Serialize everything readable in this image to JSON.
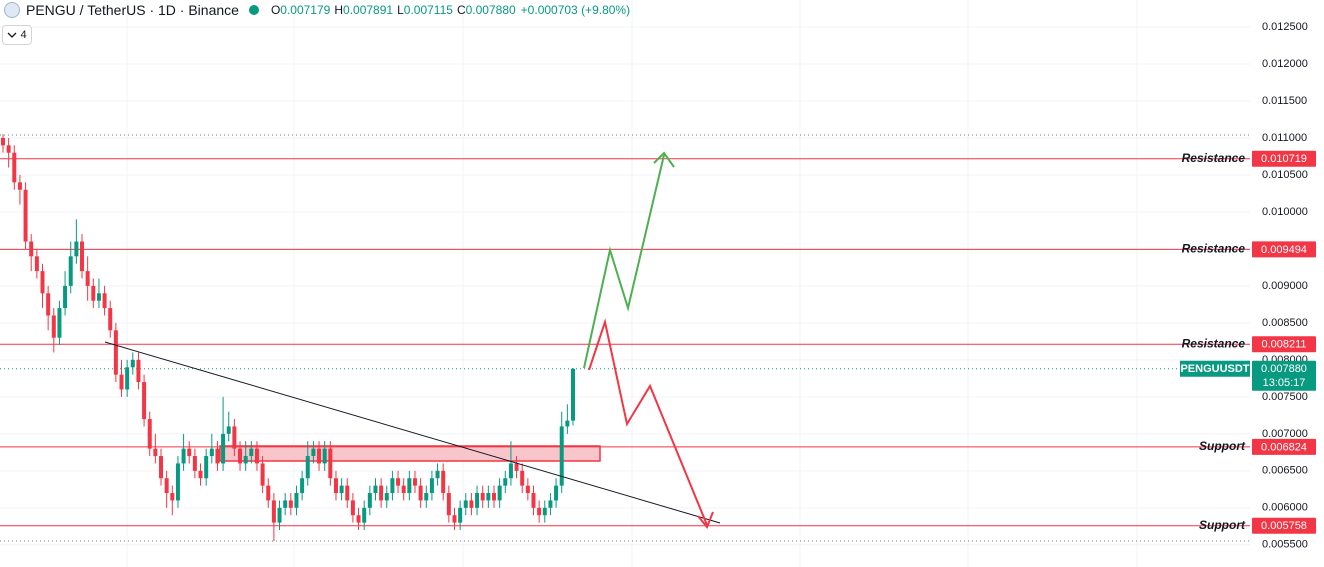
{
  "header": {
    "symbol": "PENGU / TetherUS · 1D · Binance",
    "ohlc": [
      {
        "key": "O",
        "value": "0.007179"
      },
      {
        "key": "H",
        "value": "0.007891"
      },
      {
        "key": "L",
        "value": "0.007115"
      },
      {
        "key": "C",
        "value": "0.007880"
      }
    ],
    "change": "+0.000703 (+9.80%)"
  },
  "indicator_count": "4",
  "chart_data": {
    "type": "candlestick",
    "up_color": "#089981",
    "down_color": "#f23645",
    "grid": true,
    "ylim": [
      0.0052,
      0.012865
    ],
    "yticks": [
      {
        "value": 0.0125,
        "label": "0.012500"
      },
      {
        "value": 0.012,
        "label": "0.012000"
      },
      {
        "value": 0.0115,
        "label": "0.011500"
      },
      {
        "value": 0.011,
        "label": "0.011000"
      },
      {
        "value": 0.0105,
        "label": "0.010500"
      },
      {
        "value": 0.01,
        "label": "0.010000"
      },
      {
        "value": 0.0095,
        "label": "0.009500"
      },
      {
        "value": 0.009,
        "label": "0.009000"
      },
      {
        "value": 0.0085,
        "label": "0.008500"
      },
      {
        "value": 0.008,
        "label": "0.008000"
      },
      {
        "value": 0.0075,
        "label": "0.007500"
      },
      {
        "value": 0.007,
        "label": "0.007000"
      },
      {
        "value": 0.0065,
        "label": "0.006500"
      },
      {
        "value": 0.006,
        "label": "0.006000"
      },
      {
        "value": 0.0055,
        "label": "0.005500"
      }
    ],
    "levels": [
      {
        "label": "Resistance",
        "value": 0.010719
      },
      {
        "label": "Resistance",
        "value": 0.009494
      },
      {
        "label": "Resistance",
        "value": 0.008211
      },
      {
        "label": "Support",
        "value": 0.006824
      },
      {
        "label": "Support",
        "value": 0.005758
      }
    ],
    "level_color": "#f23645",
    "last_price": {
      "symbol": "PENGUUSDT",
      "value": 0.00788,
      "value_label": "0.007880",
      "countdown": "13:05:17"
    },
    "candles": [
      [
        0.011,
        0.01105,
        0.0108,
        0.0109
      ],
      [
        0.0109,
        0.011,
        0.0106,
        0.0108
      ],
      [
        0.0108,
        0.0109,
        0.0103,
        0.0104
      ],
      [
        0.0104,
        0.0105,
        0.0101,
        0.0103
      ],
      [
        0.0103,
        0.0104,
        0.0095,
        0.0096
      ],
      [
        0.0096,
        0.0097,
        0.0092,
        0.0094
      ],
      [
        0.0094,
        0.0095,
        0.0091,
        0.0092
      ],
      [
        0.0092,
        0.0093,
        0.0087,
        0.0089
      ],
      [
        0.0089,
        0.009,
        0.0084,
        0.0086
      ],
      [
        0.0086,
        0.0087,
        0.0081,
        0.0083
      ],
      [
        0.0083,
        0.0088,
        0.0082,
        0.0087
      ],
      [
        0.0087,
        0.0092,
        0.0086,
        0.009
      ],
      [
        0.009,
        0.0096,
        0.0089,
        0.0094
      ],
      [
        0.0094,
        0.0099,
        0.0093,
        0.0096
      ],
      [
        0.0096,
        0.0097,
        0.0091,
        0.0092
      ],
      [
        0.0092,
        0.0094,
        0.0088,
        0.009
      ],
      [
        0.009,
        0.0091,
        0.0087,
        0.0088
      ],
      [
        0.0088,
        0.0091,
        0.0087,
        0.0089
      ],
      [
        0.0089,
        0.009,
        0.0086,
        0.0087
      ],
      [
        0.0087,
        0.0088,
        0.0083,
        0.0084
      ],
      [
        0.0084,
        0.0085,
        0.0077,
        0.0078
      ],
      [
        0.0078,
        0.008,
        0.0075,
        0.0076
      ],
      [
        0.0076,
        0.008,
        0.0075,
        0.0079
      ],
      [
        0.0079,
        0.0081,
        0.0078,
        0.008
      ],
      [
        0.008,
        0.0081,
        0.0076,
        0.0077
      ],
      [
        0.0077,
        0.0078,
        0.0071,
        0.0072
      ],
      [
        0.0072,
        0.0073,
        0.0067,
        0.0068
      ],
      [
        0.0068,
        0.007,
        0.0066,
        0.0067
      ],
      [
        0.0067,
        0.0068,
        0.0063,
        0.0064
      ],
      [
        0.0064,
        0.0065,
        0.006,
        0.0062
      ],
      [
        0.0062,
        0.0063,
        0.0059,
        0.0061
      ],
      [
        0.0061,
        0.0067,
        0.006,
        0.0066
      ],
      [
        0.0066,
        0.007,
        0.0065,
        0.0068
      ],
      [
        0.0068,
        0.0069,
        0.0066,
        0.0067
      ],
      [
        0.0067,
        0.0068,
        0.0064,
        0.0065
      ],
      [
        0.0065,
        0.0066,
        0.0063,
        0.0064
      ],
      [
        0.0064,
        0.0068,
        0.0063,
        0.0067
      ],
      [
        0.0067,
        0.007,
        0.0066,
        0.0068
      ],
      [
        0.0068,
        0.0069,
        0.0065,
        0.0066
      ],
      [
        0.0066,
        0.0075,
        0.0065,
        0.007
      ],
      [
        0.007,
        0.0073,
        0.0069,
        0.0071
      ],
      [
        0.0071,
        0.0072,
        0.0067,
        0.0068
      ],
      [
        0.0068,
        0.0069,
        0.0065,
        0.0066
      ],
      [
        0.0066,
        0.0069,
        0.0065,
        0.0067
      ],
      [
        0.0067,
        0.0069,
        0.0066,
        0.0068
      ],
      [
        0.0068,
        0.0069,
        0.0065,
        0.0066
      ],
      [
        0.0066,
        0.0067,
        0.0062,
        0.0063
      ],
      [
        0.0063,
        0.0064,
        0.006,
        0.0061
      ],
      [
        0.0061,
        0.0062,
        0.00555,
        0.0058
      ],
      [
        0.0058,
        0.0061,
        0.0057,
        0.006
      ],
      [
        0.006,
        0.0062,
        0.0059,
        0.0061
      ],
      [
        0.0061,
        0.0062,
        0.0059,
        0.006
      ],
      [
        0.006,
        0.0063,
        0.0059,
        0.0062
      ],
      [
        0.0062,
        0.0065,
        0.0061,
        0.0064
      ],
      [
        0.0064,
        0.0069,
        0.0063,
        0.0067
      ],
      [
        0.0067,
        0.0069,
        0.0066,
        0.0068
      ],
      [
        0.0068,
        0.0069,
        0.0065,
        0.0066
      ],
      [
        0.0066,
        0.0069,
        0.0065,
        0.0068
      ],
      [
        0.0068,
        0.0069,
        0.0063,
        0.0064
      ],
      [
        0.0064,
        0.0065,
        0.0061,
        0.0062
      ],
      [
        0.0062,
        0.0064,
        0.0061,
        0.0063
      ],
      [
        0.0063,
        0.0064,
        0.006,
        0.0061
      ],
      [
        0.0061,
        0.0062,
        0.0058,
        0.0059
      ],
      [
        0.0059,
        0.006,
        0.0057,
        0.0058
      ],
      [
        0.0058,
        0.0061,
        0.0057,
        0.006
      ],
      [
        0.006,
        0.0063,
        0.0059,
        0.0062
      ],
      [
        0.0062,
        0.0064,
        0.0061,
        0.0063
      ],
      [
        0.0063,
        0.0064,
        0.006,
        0.0061
      ],
      [
        0.0061,
        0.0063,
        0.006,
        0.0062
      ],
      [
        0.0062,
        0.0065,
        0.0061,
        0.0064
      ],
      [
        0.0064,
        0.0065,
        0.0062,
        0.0063
      ],
      [
        0.0063,
        0.0064,
        0.0061,
        0.0062
      ],
      [
        0.0062,
        0.0065,
        0.0061,
        0.0064
      ],
      [
        0.0064,
        0.0065,
        0.0062,
        0.0063
      ],
      [
        0.0063,
        0.0064,
        0.006,
        0.0061
      ],
      [
        0.0061,
        0.0063,
        0.006,
        0.0062
      ],
      [
        0.0062,
        0.0065,
        0.0061,
        0.0064
      ],
      [
        0.0064,
        0.0066,
        0.0063,
        0.0065
      ],
      [
        0.0065,
        0.0066,
        0.0061,
        0.0062
      ],
      [
        0.0062,
        0.0063,
        0.0058,
        0.0059
      ],
      [
        0.0059,
        0.006,
        0.0057,
        0.0058
      ],
      [
        0.0058,
        0.0061,
        0.0057,
        0.006
      ],
      [
        0.006,
        0.0062,
        0.0059,
        0.0061
      ],
      [
        0.0061,
        0.0062,
        0.0059,
        0.006
      ],
      [
        0.006,
        0.0063,
        0.0059,
        0.0062
      ],
      [
        0.0062,
        0.0063,
        0.006,
        0.0061
      ],
      [
        0.0061,
        0.0063,
        0.006,
        0.0062
      ],
      [
        0.0062,
        0.0063,
        0.006,
        0.0061
      ],
      [
        0.0061,
        0.0064,
        0.006,
        0.0063
      ],
      [
        0.0063,
        0.0065,
        0.0062,
        0.0064
      ],
      [
        0.0064,
        0.0069,
        0.0063,
        0.0066
      ],
      [
        0.0066,
        0.0067,
        0.0064,
        0.0065
      ],
      [
        0.0065,
        0.0066,
        0.0062,
        0.0063
      ],
      [
        0.0063,
        0.0064,
        0.0061,
        0.0062
      ],
      [
        0.0062,
        0.0063,
        0.0059,
        0.006
      ],
      [
        0.006,
        0.0061,
        0.0058,
        0.0059
      ],
      [
        0.0059,
        0.0061,
        0.0058,
        0.006
      ],
      [
        0.006,
        0.0062,
        0.0059,
        0.0061
      ],
      [
        0.0061,
        0.0064,
        0.006,
        0.0063
      ],
      [
        0.0063,
        0.0073,
        0.0062,
        0.0071
      ],
      [
        0.0071,
        0.0074,
        0.007,
        0.007179
      ],
      [
        0.007179,
        0.007891,
        0.007115,
        0.00788
      ]
    ]
  }
}
